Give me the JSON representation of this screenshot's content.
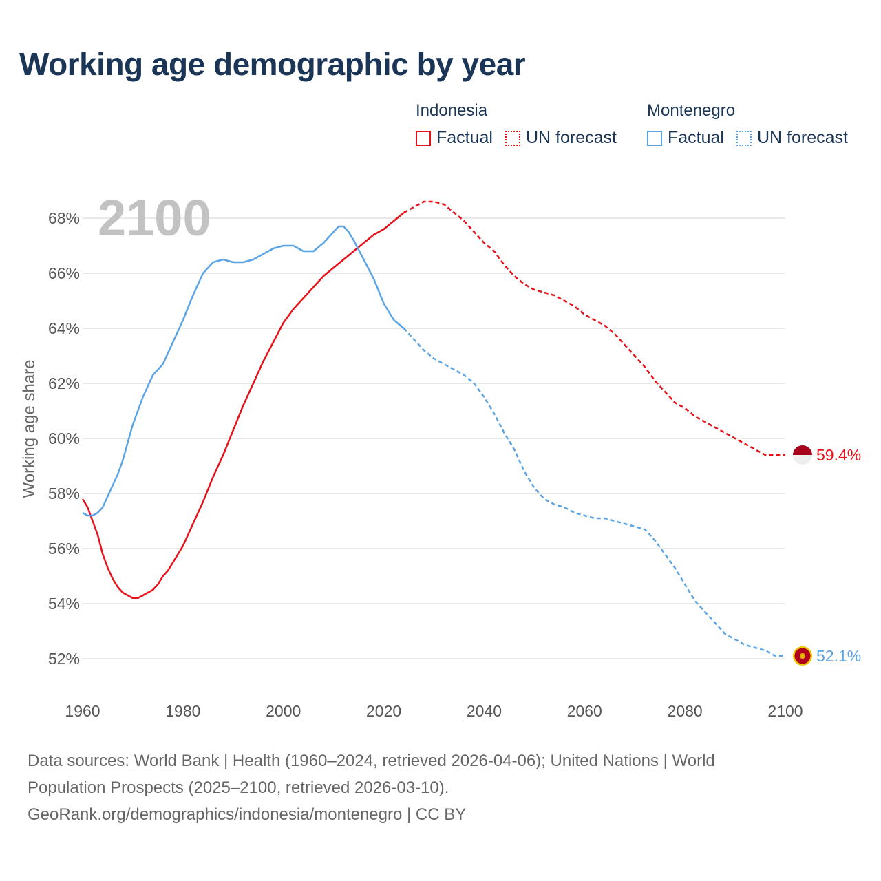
{
  "title": "Working age demographic by year",
  "year_overlay": "2100",
  "legend": {
    "groups": [
      {
        "name": "Indonesia",
        "color": "#e8111a",
        "items": [
          "Factual",
          "UN forecast"
        ]
      },
      {
        "name": "Montenegro",
        "color": "#5ba4e5",
        "items": [
          "Factual",
          "UN forecast"
        ]
      }
    ]
  },
  "sources": {
    "line1": "Data sources: World Bank | Health (1960–2024, retrieved 2026-04-06); United Nations | World",
    "line2": "Population Prospects (2025–2100, retrieved 2026-03-10).",
    "line3": "GeoRank.org/demographics/indonesia/montenegro | CC BY"
  },
  "chart_data": {
    "type": "line",
    "title": "Working age demographic by year",
    "xlabel": "",
    "ylabel": "Working age share",
    "xlim": [
      1960,
      2100
    ],
    "ylim": [
      51,
      69
    ],
    "x_ticks": [
      "1960",
      "1980",
      "2000",
      "2020",
      "2040",
      "2060",
      "2080",
      "2100"
    ],
    "y_ticks": [
      "52%",
      "54%",
      "56%",
      "58%",
      "60%",
      "62%",
      "64%",
      "66%",
      "68%"
    ],
    "grid": true,
    "factual_range": [
      1960,
      2024
    ],
    "forecast_range": [
      2024,
      2100
    ],
    "series": [
      {
        "name": "Indonesia",
        "color": "#e8111a",
        "end_label": "59.4%",
        "x": [
          1960,
          1961,
          1962,
          1963,
          1964,
          1965,
          1966,
          1967,
          1968,
          1969,
          1970,
          1971,
          1972,
          1973,
          1974,
          1975,
          1976,
          1977,
          1978,
          1979,
          1980,
          1982,
          1984,
          1986,
          1988,
          1990,
          1992,
          1994,
          1996,
          1998,
          2000,
          2002,
          2004,
          2006,
          2008,
          2010,
          2012,
          2014,
          2016,
          2018,
          2020,
          2022,
          2024,
          2026,
          2028,
          2030,
          2032,
          2034,
          2036,
          2038,
          2040,
          2042,
          2044,
          2046,
          2048,
          2050,
          2052,
          2054,
          2056,
          2058,
          2060,
          2062,
          2064,
          2066,
          2068,
          2070,
          2072,
          2074,
          2076,
          2078,
          2080,
          2082,
          2084,
          2086,
          2088,
          2090,
          2092,
          2094,
          2096,
          2098,
          2100
        ],
        "values": [
          57.8,
          57.5,
          57.0,
          56.5,
          55.8,
          55.3,
          54.9,
          54.6,
          54.4,
          54.3,
          54.2,
          54.2,
          54.3,
          54.4,
          54.5,
          54.7,
          55.0,
          55.2,
          55.5,
          55.8,
          56.1,
          56.9,
          57.7,
          58.6,
          59.4,
          60.3,
          61.2,
          62.0,
          62.8,
          63.5,
          64.2,
          64.7,
          65.1,
          65.5,
          65.9,
          66.2,
          66.5,
          66.8,
          67.1,
          67.4,
          67.6,
          67.9,
          68.2,
          68.4,
          68.6,
          68.6,
          68.5,
          68.2,
          67.9,
          67.5,
          67.1,
          66.8,
          66.3,
          65.9,
          65.6,
          65.4,
          65.3,
          65.2,
          65.0,
          64.8,
          64.5,
          64.3,
          64.1,
          63.8,
          63.4,
          63.0,
          62.6,
          62.1,
          61.7,
          61.3,
          61.1,
          60.8,
          60.6,
          60.4,
          60.2,
          60.0,
          59.8,
          59.6,
          59.4,
          59.4,
          59.4
        ]
      },
      {
        "name": "Montenegro",
        "color": "#5ba4e5",
        "end_label": "52.1%",
        "x": [
          1960,
          1961,
          1962,
          1963,
          1964,
          1965,
          1966,
          1967,
          1968,
          1970,
          1972,
          1974,
          1976,
          1978,
          1980,
          1982,
          1984,
          1986,
          1988,
          1990,
          1992,
          1994,
          1996,
          1998,
          2000,
          2002,
          2004,
          2006,
          2008,
          2009,
          2010,
          2011,
          2012,
          2013,
          2014,
          2016,
          2018,
          2020,
          2022,
          2024,
          2026,
          2028,
          2030,
          2032,
          2034,
          2036,
          2038,
          2040,
          2042,
          2044,
          2046,
          2048,
          2050,
          2052,
          2054,
          2056,
          2058,
          2060,
          2062,
          2064,
          2066,
          2068,
          2070,
          2072,
          2074,
          2076,
          2078,
          2080,
          2082,
          2084,
          2086,
          2088,
          2090,
          2092,
          2094,
          2096,
          2098,
          2100
        ],
        "values": [
          57.3,
          57.2,
          57.2,
          57.3,
          57.5,
          57.9,
          58.3,
          58.7,
          59.2,
          60.5,
          61.5,
          62.3,
          62.7,
          63.5,
          64.3,
          65.2,
          66.0,
          66.4,
          66.5,
          66.4,
          66.4,
          66.5,
          66.7,
          66.9,
          67.0,
          67.0,
          66.8,
          66.8,
          67.1,
          67.3,
          67.5,
          67.7,
          67.7,
          67.5,
          67.2,
          66.5,
          65.8,
          64.9,
          64.3,
          64.0,
          63.6,
          63.2,
          62.9,
          62.7,
          62.5,
          62.3,
          62.0,
          61.5,
          60.9,
          60.2,
          59.6,
          58.8,
          58.2,
          57.8,
          57.6,
          57.5,
          57.3,
          57.2,
          57.1,
          57.1,
          57.0,
          56.9,
          56.8,
          56.7,
          56.3,
          55.8,
          55.3,
          54.7,
          54.1,
          53.7,
          53.3,
          52.9,
          52.7,
          52.5,
          52.4,
          52.3,
          52.1,
          52.1
        ]
      }
    ]
  }
}
